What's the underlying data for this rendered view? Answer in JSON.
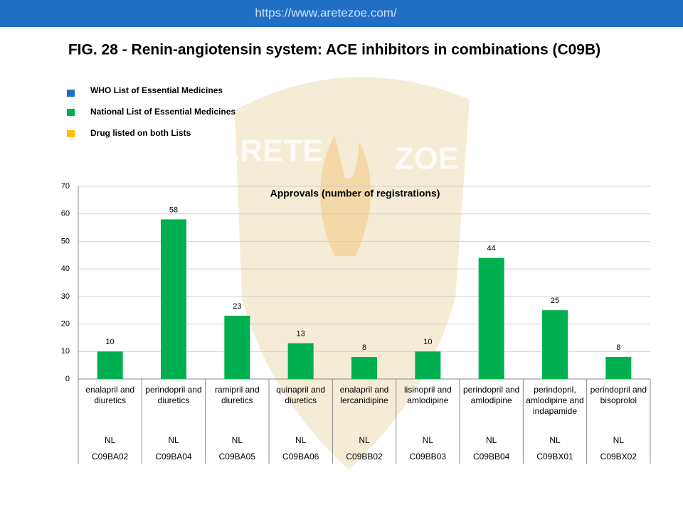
{
  "header": {
    "url": "https://www.aretezoe.com/"
  },
  "title": "FIG. 28 - Renin-angiotensin system: ACE inhibitors in combinations (C09B)",
  "watermark": [
    "ARETE",
    "ZOE"
  ],
  "chart_data": {
    "type": "bar",
    "title": "Approvals (number of registrations)",
    "categories": [
      "enalapril and diuretics",
      "perindopril and diuretics",
      "ramipril and diuretics",
      "quinapril and diuretics",
      "enalapril and lercanidipine",
      "lisinopril and amlodipine",
      "perindopril and amlodipine",
      "perindopril, amlodipine and indapamide",
      "perindopril and bisoprolol"
    ],
    "list_labels": [
      "NL",
      "NL",
      "NL",
      "NL",
      "NL",
      "NL",
      "NL",
      "NL",
      "NL"
    ],
    "codes": [
      "C09BA02",
      "C09BA04",
      "C09BA05",
      "C09BA06",
      "C09BB02",
      "C09BB03",
      "C09BB04",
      "C09BX01",
      "C09BX02"
    ],
    "series": [
      {
        "name": "WHO List of Essential Medicines",
        "color": "#1f6fc5",
        "values": [
          null,
          null,
          null,
          null,
          null,
          null,
          null,
          null,
          null
        ]
      },
      {
        "name": "National List of Essential Medicines",
        "color": "#00b050",
        "values": [
          10,
          58,
          23,
          13,
          8,
          10,
          44,
          25,
          8
        ]
      },
      {
        "name": "Drug listed on both Lists",
        "color": "#ffc000",
        "values": [
          null,
          null,
          null,
          null,
          null,
          null,
          null,
          null,
          null
        ]
      }
    ],
    "ylim": [
      0,
      70
    ],
    "yticks": [
      0,
      10,
      20,
      30,
      40,
      50,
      60,
      70
    ],
    "grid": true
  }
}
